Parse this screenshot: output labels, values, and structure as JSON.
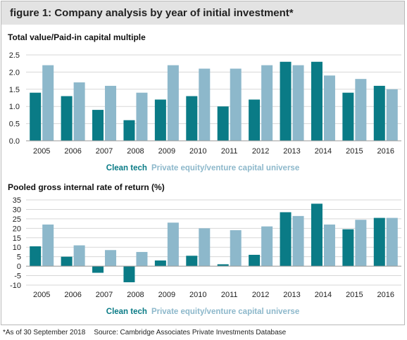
{
  "figure": {
    "title": "figure 1: Company analysis by year of initial investment*"
  },
  "colors": {
    "clean_tech": "#0a7b86",
    "pe_vc": "#8db8cb",
    "header_bg": "#e3e3e3",
    "grid": "#d7d7d7",
    "axis_text": "#222222"
  },
  "chart_data": [
    {
      "type": "bar",
      "title": "Total value/Paid-in capital multiple",
      "xlabel": "",
      "ylabel": "",
      "categories": [
        "2005",
        "2006",
        "2007",
        "2008",
        "2009",
        "2010",
        "2011",
        "2012",
        "2013",
        "2014",
        "2015",
        "2016"
      ],
      "series": [
        {
          "name": "Clean tech",
          "values": [
            1.4,
            1.3,
            0.9,
            0.6,
            1.2,
            1.3,
            1.0,
            1.2,
            2.3,
            2.3,
            1.4,
            1.6
          ]
        },
        {
          "name": "Private equity/venture capital universe",
          "values": [
            2.2,
            1.7,
            1.6,
            1.4,
            2.2,
            2.1,
            2.1,
            2.2,
            2.2,
            1.9,
            1.8,
            1.5
          ]
        }
      ],
      "ylim": [
        0,
        2.5
      ],
      "yticks": [
        "0.0",
        "0.5",
        "1.0",
        "1.5",
        "2.0",
        "2.5"
      ],
      "ytick_values": [
        0,
        0.5,
        1.0,
        1.5,
        2.0,
        2.5
      ],
      "grid": true,
      "legend_position": "bottom-center"
    },
    {
      "type": "bar",
      "title": "Pooled gross internal rate of return (%)",
      "xlabel": "",
      "ylabel": "",
      "categories": [
        "2005",
        "2006",
        "2007",
        "2008",
        "2009",
        "2010",
        "2011",
        "2012",
        "2013",
        "2014",
        "2015",
        "2016"
      ],
      "series": [
        {
          "name": "Clean tech",
          "values": [
            10.5,
            5,
            -3.5,
            -8.5,
            3,
            5.5,
            1,
            6,
            28.5,
            33,
            19.5,
            25.5
          ]
        },
        {
          "name": "Private equity/venture capital universe",
          "values": [
            22,
            11,
            8.5,
            7.5,
            23,
            20,
            19,
            21,
            26.5,
            22,
            24.5,
            25.5
          ]
        }
      ],
      "ylim": [
        -10,
        35
      ],
      "yticks": [
        "35",
        "30",
        "25",
        "20",
        "15",
        "10",
        "5",
        "0",
        "-5",
        "-10"
      ],
      "ytick_values": [
        35,
        30,
        25,
        20,
        15,
        10,
        5,
        0,
        -5,
        -10
      ],
      "grid": true,
      "legend_position": "bottom-center"
    }
  ],
  "footnote": {
    "asterisk_note": "*As of 30 September 2018",
    "source": "Source: Cambridge Associates Private Investments Database"
  }
}
